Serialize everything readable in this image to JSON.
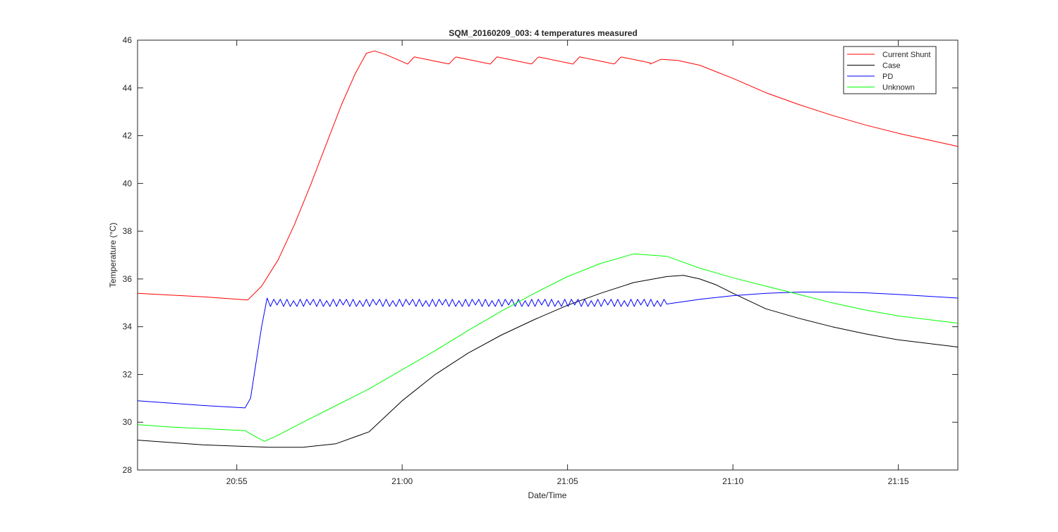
{
  "chart_data": {
    "type": "line",
    "title": "SQM_20160209_003: 4 temperatures measured",
    "xlabel": "Date/Time",
    "ylabel": "Temperature (°C)",
    "xlim": [
      "20:52:00",
      "21:16:48"
    ],
    "ylim": [
      28,
      46
    ],
    "x_ticks": [
      "20:55",
      "21:00",
      "21:05",
      "21:10",
      "21:15"
    ],
    "y_ticks": [
      "28",
      "30",
      "32",
      "34",
      "36",
      "38",
      "40",
      "42",
      "44",
      "46"
    ],
    "grid": false,
    "legend_position": "top-right",
    "series": [
      {
        "name": "Current Shunt",
        "color": "#ff0000",
        "points": [
          [
            "20:52:00",
            35.4
          ],
          [
            "20:54:00",
            35.25
          ],
          [
            "20:55:20",
            35.12
          ],
          [
            "20:55:45",
            35.7
          ],
          [
            "20:56:15",
            36.8
          ],
          [
            "20:56:45",
            38.3
          ],
          [
            "20:57:15",
            40.0
          ],
          [
            "20:57:45",
            41.8
          ],
          [
            "20:58:10",
            43.3
          ],
          [
            "20:58:35",
            44.6
          ],
          [
            "20:58:55",
            45.45
          ],
          [
            "20:59:10",
            45.55
          ],
          [
            "20:59:30",
            45.4
          ],
          [
            "20:59:55",
            45.15
          ],
          [
            "21:00:10",
            45.0
          ]
        ],
        "cycle": {
          "period_seconds": 75,
          "min": 45.0,
          "max": 45.3,
          "until": "21:07:30"
        },
        "tail": [
          [
            "21:07:30",
            45.0
          ],
          [
            "21:07:50",
            45.2
          ],
          [
            "21:08:20",
            45.15
          ],
          [
            "21:09:00",
            44.95
          ],
          [
            "21:10:00",
            44.4
          ],
          [
            "21:11:00",
            43.8
          ],
          [
            "21:12:00",
            43.3
          ],
          [
            "21:13:00",
            42.85
          ],
          [
            "21:14:00",
            42.45
          ],
          [
            "21:15:00",
            42.1
          ],
          [
            "21:16:48",
            41.55
          ]
        ]
      },
      {
        "name": "Case",
        "color": "#000000",
        "points": [
          [
            "20:52:00",
            29.25
          ],
          [
            "20:53:00",
            29.15
          ],
          [
            "20:54:00",
            29.05
          ],
          [
            "20:55:00",
            29.0
          ],
          [
            "20:56:00",
            28.95
          ],
          [
            "20:57:00",
            28.95
          ],
          [
            "20:58:00",
            29.1
          ],
          [
            "20:59:00",
            29.6
          ],
          [
            "21:00:00",
            30.9
          ],
          [
            "21:01:00",
            32.0
          ],
          [
            "21:02:00",
            32.9
          ],
          [
            "21:03:00",
            33.65
          ],
          [
            "21:04:00",
            34.3
          ],
          [
            "21:05:00",
            34.9
          ],
          [
            "21:06:00",
            35.4
          ],
          [
            "21:07:00",
            35.85
          ],
          [
            "21:08:00",
            36.1
          ],
          [
            "21:08:30",
            36.15
          ],
          [
            "21:09:00",
            36.0
          ],
          [
            "21:09:30",
            35.75
          ],
          [
            "21:10:00",
            35.4
          ],
          [
            "21:11:00",
            34.75
          ],
          [
            "21:12:00",
            34.35
          ],
          [
            "21:13:00",
            34.0
          ],
          [
            "21:14:00",
            33.7
          ],
          [
            "21:15:00",
            33.45
          ],
          [
            "21:16:48",
            33.15
          ]
        ]
      },
      {
        "name": "PD",
        "color": "#0000ff",
        "points": [
          [
            "20:52:00",
            30.9
          ],
          [
            "20:53:00",
            30.8
          ],
          [
            "20:54:00",
            30.7
          ],
          [
            "20:55:15",
            30.6
          ],
          [
            "20:55:25",
            31.0
          ],
          [
            "20:55:35",
            32.5
          ],
          [
            "20:55:45",
            34.0
          ],
          [
            "20:55:55",
            35.2
          ]
        ],
        "oscillation": {
          "center": 35.0,
          "amplitude": 0.15,
          "period_seconds": 12,
          "from": "20:55:55",
          "until": "21:08:00"
        },
        "tail": [
          [
            "21:08:00",
            34.95
          ],
          [
            "21:09:00",
            35.15
          ],
          [
            "21:10:00",
            35.3
          ],
          [
            "21:11:00",
            35.4
          ],
          [
            "21:12:00",
            35.45
          ],
          [
            "21:13:00",
            35.45
          ],
          [
            "21:14:00",
            35.42
          ],
          [
            "21:15:00",
            35.35
          ],
          [
            "21:16:48",
            35.2
          ]
        ]
      },
      {
        "name": "Unknown",
        "color": "#00ff00",
        "points": [
          [
            "20:52:00",
            29.9
          ],
          [
            "20:53:00",
            29.8
          ],
          [
            "20:55:15",
            29.65
          ],
          [
            "20:55:30",
            29.45
          ],
          [
            "20:55:50",
            29.2
          ],
          [
            "20:56:10",
            29.4
          ],
          [
            "20:57:00",
            30.0
          ],
          [
            "20:58:00",
            30.7
          ],
          [
            "20:59:00",
            31.4
          ],
          [
            "21:00:00",
            32.2
          ],
          [
            "21:01:00",
            33.0
          ],
          [
            "21:02:00",
            33.85
          ],
          [
            "21:03:00",
            34.65
          ],
          [
            "21:04:00",
            35.4
          ],
          [
            "21:05:00",
            36.1
          ],
          [
            "21:06:00",
            36.65
          ],
          [
            "21:07:00",
            37.05
          ],
          [
            "21:08:00",
            36.95
          ],
          [
            "21:09:00",
            36.45
          ],
          [
            "21:10:00",
            36.05
          ],
          [
            "21:11:00",
            35.7
          ],
          [
            "21:12:00",
            35.35
          ],
          [
            "21:13:00",
            35.0
          ],
          [
            "21:14:00",
            34.7
          ],
          [
            "21:15:00",
            34.45
          ],
          [
            "21:16:48",
            34.15
          ]
        ]
      }
    ]
  }
}
